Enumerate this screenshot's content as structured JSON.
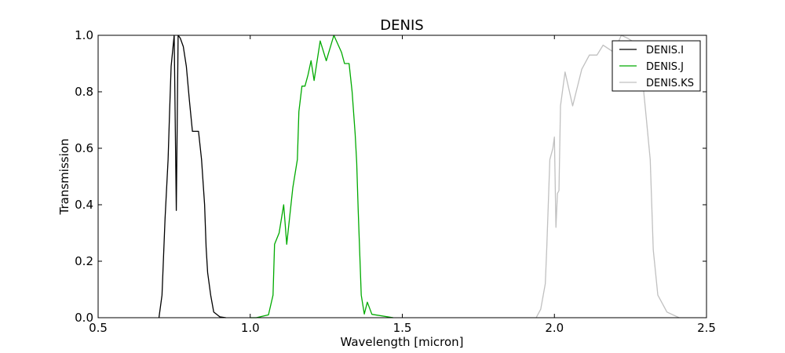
{
  "chart_data": {
    "type": "line",
    "title": "DENIS",
    "xlabel": "Wavelength [micron]",
    "ylabel": "Transmission",
    "xlim": [
      0.5,
      2.5
    ],
    "ylim": [
      0.0,
      1.0
    ],
    "xticks": [
      0.5,
      1.0,
      1.5,
      2.0,
      2.5
    ],
    "xtick_labels": [
      "0.5",
      "1.0",
      "1.5",
      "2.0",
      "2.5"
    ],
    "yticks": [
      0.0,
      0.2,
      0.4,
      0.6,
      0.8,
      1.0
    ],
    "ytick_labels": [
      "0.0",
      "0.2",
      "0.4",
      "0.6",
      "0.8",
      "1.0"
    ],
    "grid": false,
    "legend_position": "top-right",
    "series": [
      {
        "name": "DENIS.I",
        "color": "#000000",
        "x": [
          0.7,
          0.71,
          0.72,
          0.73,
          0.735,
          0.74,
          0.75,
          0.757,
          0.763,
          0.77,
          0.78,
          0.79,
          0.8,
          0.81,
          0.82,
          0.83,
          0.84,
          0.85,
          0.855,
          0.86,
          0.87,
          0.88,
          0.9,
          0.92
        ],
        "y": [
          0.0,
          0.08,
          0.35,
          0.56,
          0.73,
          0.89,
          1.0,
          0.38,
          1.0,
          0.99,
          0.96,
          0.89,
          0.77,
          0.66,
          0.66,
          0.66,
          0.56,
          0.4,
          0.25,
          0.16,
          0.08,
          0.02,
          0.003,
          0.0
        ]
      },
      {
        "name": "DENIS.J",
        "color": "#00aa00",
        "x": [
          1.0,
          1.02,
          1.06,
          1.075,
          1.08,
          1.095,
          1.11,
          1.12,
          1.14,
          1.155,
          1.16,
          1.17,
          1.18,
          1.19,
          1.2,
          1.21,
          1.23,
          1.25,
          1.275,
          1.3,
          1.31,
          1.325,
          1.335,
          1.345,
          1.35,
          1.355,
          1.365,
          1.375,
          1.385,
          1.4,
          1.47
        ],
        "y": [
          0.0,
          0.0,
          0.01,
          0.08,
          0.26,
          0.3,
          0.4,
          0.26,
          0.46,
          0.56,
          0.73,
          0.82,
          0.82,
          0.86,
          0.91,
          0.84,
          0.98,
          0.91,
          1.0,
          0.94,
          0.9,
          0.9,
          0.8,
          0.65,
          0.55,
          0.38,
          0.08,
          0.013,
          0.055,
          0.012,
          0.0
        ]
      },
      {
        "name": "DENIS.KS",
        "color": "#c0c0c0",
        "x": [
          1.94,
          1.955,
          1.97,
          1.975,
          1.985,
          1.99,
          1.995,
          2.0,
          2.005,
          2.01,
          2.015,
          2.02,
          2.035,
          2.06,
          2.09,
          2.115,
          2.14,
          2.16,
          2.195,
          2.22,
          2.24,
          2.255,
          2.27,
          2.285,
          2.29,
          2.3,
          2.315,
          2.325,
          2.34,
          2.37,
          2.41
        ],
        "y": [
          0.0,
          0.03,
          0.12,
          0.25,
          0.56,
          0.58,
          0.6,
          0.64,
          0.32,
          0.44,
          0.45,
          0.75,
          0.87,
          0.75,
          0.88,
          0.93,
          0.93,
          0.965,
          0.94,
          1.0,
          0.99,
          0.98,
          0.97,
          0.96,
          0.84,
          0.73,
          0.56,
          0.24,
          0.08,
          0.02,
          0.0
        ]
      }
    ]
  }
}
